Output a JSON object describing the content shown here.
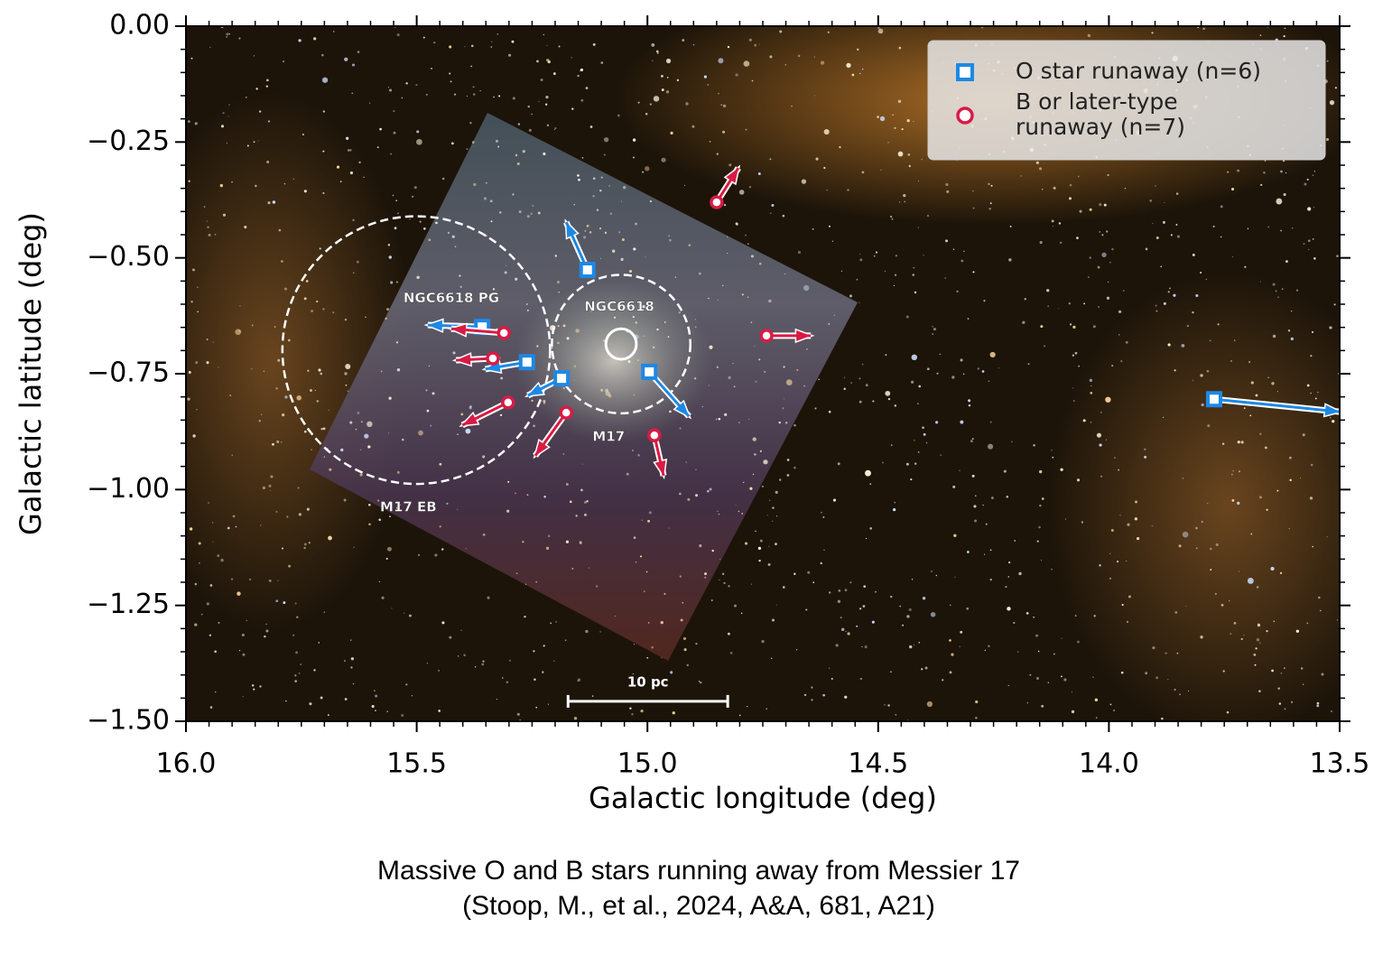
{
  "chart_data": {
    "type": "scatter",
    "xlabel": "Galactic longitude (deg)",
    "ylabel": "Galactic latitude (deg)",
    "xlim": [
      16.0,
      13.5
    ],
    "ylim": [
      -1.5,
      0.0
    ],
    "xticks": [
      {
        "value": 16.0,
        "label": "16.0"
      },
      15.5,
      {
        "value": 15.0,
        "label": "15.0"
      },
      14.5,
      {
        "value": 14.0,
        "label": "14.0"
      },
      13.5
    ],
    "yticks": [
      {
        "value": 0.0,
        "label": "0.00"
      },
      {
        "value": -0.25,
        "label": "−0.25"
      },
      {
        "value": -0.5,
        "label": "−0.50"
      },
      {
        "value": -0.75,
        "label": "−0.75"
      },
      {
        "value": -1.0,
        "label": "−1.00"
      },
      {
        "value": -1.25,
        "label": "−1.25"
      },
      {
        "value": -1.5,
        "label": "−1.50"
      }
    ],
    "xminor": 10,
    "yminor": 5,
    "legend": "upper right",
    "series": [
      {
        "name": "O star runaway (n=6)",
        "color": "#1e88e5",
        "marker": "square",
        "x": [
          15.13,
          15.358,
          15.261,
          15.186,
          14.996,
          13.772
        ],
        "values": [
          -0.526,
          -0.649,
          -0.725,
          -0.76,
          -0.746,
          -0.805
        ],
        "arrow_end_x": [
          15.176,
          15.476,
          15.351,
          15.259,
          14.91,
          13.5
        ],
        "arrow_end_y": [
          -0.423,
          -0.645,
          -0.74,
          -0.797,
          -0.842,
          -0.832
        ]
      },
      {
        "name": "B or later-type\nrunaway (n=7)",
        "color": "#d81b45",
        "marker": "circle",
        "x": [
          14.85,
          15.311,
          15.335,
          15.302,
          15.176,
          14.985,
          14.742
        ],
        "values": [
          -0.38,
          -0.662,
          -0.717,
          -0.812,
          -0.834,
          -0.883,
          -0.668
        ],
        "arrow_end_x": [
          14.803,
          15.425,
          15.415,
          15.401,
          15.243,
          14.965,
          14.646
        ],
        "arrow_end_y": [
          -0.306,
          -0.653,
          -0.721,
          -0.861,
          -0.927,
          -0.97,
          -0.668
        ]
      }
    ],
    "regions": [
      {
        "x": 15.501,
        "y": -0.699,
        "r": 0.29,
        "style": "dashed"
      },
      {
        "x": 15.057,
        "y": -0.686,
        "r": 0.15,
        "style": "dashed"
      },
      {
        "x": 15.057,
        "y": -0.686,
        "r": 0.033,
        "style": "solid"
      }
    ],
    "annotations": [
      {
        "text": "NGC6618 PG",
        "x": 15.425,
        "y": -0.587
      },
      {
        "text": "M17 EB",
        "x": 15.518,
        "y": -1.038
      },
      {
        "text": "NGC6618",
        "x": 15.061,
        "y": -0.606
      },
      {
        "text": "M17",
        "x": 15.084,
        "y": -0.886
      }
    ],
    "scalebar": {
      "label": "10 pc",
      "x": [
        15.172,
        14.826
      ],
      "y": -1.457
    }
  },
  "caption": [
    "Massive O and B stars running away from Messier 17",
    "(Stoop, M., et al., 2024, A&A, 681, A21)"
  ]
}
